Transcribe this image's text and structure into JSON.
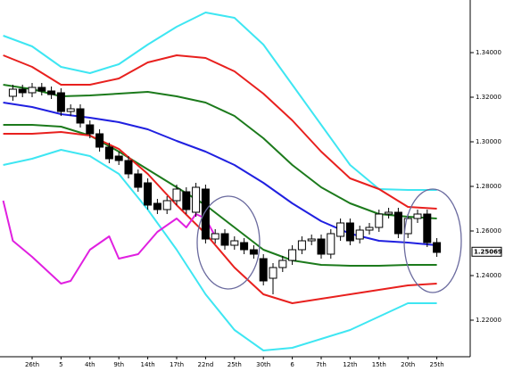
{
  "chart_data": {
    "type": "candlestick",
    "categories": [
      null,
      null,
      "26th",
      null,
      null,
      "5",
      null,
      null,
      "4th",
      null,
      null,
      "9th",
      null,
      null,
      "14th",
      null,
      null,
      "17th",
      null,
      null,
      "22nd",
      null,
      null,
      "25th",
      null,
      null,
      "30th",
      null,
      null,
      "6",
      null,
      null,
      "7th",
      null,
      null,
      "12th",
      null,
      null,
      "15th",
      null,
      null,
      "20th",
      null,
      null,
      "25th"
    ],
    "open": [
      1.3204,
      1.3236,
      1.322,
      1.3244,
      1.3228,
      1.322,
      1.3136,
      1.3148,
      1.3076,
      1.3036,
      1.2976,
      1.2936,
      1.2916,
      1.2856,
      1.2816,
      1.2724,
      1.2696,
      1.2736,
      1.2776,
      1.2684,
      1.2788,
      1.2564,
      1.2588,
      1.2536,
      1.2548,
      1.2516,
      1.2476,
      1.2388,
      1.2436,
      1.2468,
      1.2516,
      1.2556,
      1.2564,
      1.2496,
      1.2576,
      1.2636,
      1.2564,
      1.2604,
      1.2616,
      1.2676,
      1.2684,
      1.2588,
      1.2656,
      1.2676,
      1.2548
    ],
    "high": [
      1.3256,
      1.3256,
      1.3264,
      1.3264,
      1.3248,
      1.324,
      1.3168,
      1.3168,
      1.3096,
      1.3056,
      1.2996,
      1.2956,
      1.2936,
      1.2876,
      1.2836,
      1.2744,
      1.2756,
      1.2808,
      1.2796,
      1.2816,
      1.2808,
      1.2608,
      1.2608,
      1.2576,
      1.2568,
      1.2536,
      1.2496,
      1.2456,
      1.2488,
      1.2536,
      1.2576,
      1.2584,
      1.2584,
      1.2608,
      1.2656,
      1.2656,
      1.2624,
      1.2636,
      1.2696,
      1.2704,
      1.2704,
      1.2676,
      1.2696,
      1.2696,
      1.2568
    ],
    "low": [
      1.3184,
      1.32,
      1.32,
      1.3208,
      1.3192,
      1.3116,
      1.3116,
      1.3064,
      1.3016,
      1.2956,
      1.2904,
      1.2896,
      1.2836,
      1.2776,
      1.2696,
      1.2676,
      1.2676,
      1.2716,
      1.2676,
      1.2664,
      1.2544,
      1.2544,
      1.2516,
      1.2516,
      1.2496,
      1.2476,
      1.2356,
      1.2316,
      1.2416,
      1.2448,
      1.2496,
      1.2536,
      1.2476,
      1.2476,
      1.2556,
      1.2536,
      1.2544,
      1.2584,
      1.2596,
      1.2656,
      1.2568,
      1.2568,
      1.2636,
      1.2528,
      1.2484
    ],
    "close": [
      1.3236,
      1.322,
      1.3244,
      1.3228,
      1.3212,
      1.3136,
      1.3148,
      1.3084,
      1.3036,
      1.2976,
      1.2924,
      1.2916,
      1.2856,
      1.2796,
      1.2716,
      1.2696,
      1.2736,
      1.2788,
      1.2696,
      1.2796,
      1.2564,
      1.2588,
      1.2536,
      1.2556,
      1.2516,
      1.2496,
      1.2376,
      1.2436,
      1.2468,
      1.2516,
      1.2556,
      1.2564,
      1.2496,
      1.2588,
      1.2636,
      1.2556,
      1.2604,
      1.2616,
      1.2676,
      1.2684,
      1.2588,
      1.2656,
      1.2676,
      1.2548,
      1.2504
    ],
    "bands": [
      {
        "color": "#3ee6f2",
        "x": [
          -1,
          2,
          5,
          8,
          11,
          14,
          17,
          20,
          23,
          26,
          29,
          32,
          35,
          38,
          41,
          44
        ],
        "values": [
          1.3476,
          1.3428,
          1.3336,
          1.3308,
          1.3348,
          1.3436,
          1.3516,
          1.358,
          1.3556,
          1.3436,
          1.3256,
          1.3076,
          1.2896,
          1.2788,
          1.2784,
          1.2784
        ]
      },
      {
        "color": "#e8201e",
        "x": [
          -1,
          2,
          5,
          8,
          11,
          14,
          17,
          20,
          23,
          26,
          29,
          32,
          35,
          38,
          41,
          44
        ],
        "values": [
          1.3388,
          1.3336,
          1.3256,
          1.3256,
          1.3284,
          1.3356,
          1.3388,
          1.3376,
          1.3316,
          1.3216,
          1.3096,
          1.2956,
          1.2836,
          1.2788,
          1.2708,
          1.27
        ]
      },
      {
        "color": "#1c7a1c",
        "x": [
          -1,
          2,
          5,
          8,
          11,
          14,
          17,
          20,
          23,
          26,
          29,
          32,
          35,
          38,
          41,
          44
        ],
        "values": [
          1.3256,
          1.3236,
          1.3204,
          1.3208,
          1.3216,
          1.3224,
          1.3204,
          1.3176,
          1.3116,
          1.3016,
          1.2896,
          1.2796,
          1.2724,
          1.2676,
          1.2664,
          1.2656
        ]
      },
      {
        "color": "#2020e0",
        "x": [
          -1,
          2,
          5,
          8,
          11,
          14,
          17,
          20,
          23,
          26,
          29,
          32,
          35,
          38,
          41,
          44
        ],
        "values": [
          1.3176,
          1.3156,
          1.3124,
          1.3108,
          1.3088,
          1.3056,
          1.3004,
          1.2956,
          1.2896,
          1.2816,
          1.2724,
          1.2644,
          1.2588,
          1.2556,
          1.2548,
          1.2536
        ]
      },
      {
        "color": "#1c7a1c",
        "x": [
          -1,
          2,
          5,
          8,
          11,
          14,
          17,
          20,
          23,
          26,
          29,
          32,
          35,
          38,
          41,
          44
        ],
        "values": [
          1.3076,
          1.3076,
          1.3068,
          1.3028,
          1.2956,
          1.2876,
          1.2796,
          1.2716,
          1.2616,
          1.2516,
          1.2468,
          1.2448,
          1.2444,
          1.2444,
          1.2448,
          1.2448
        ]
      },
      {
        "color": "#e8201e",
        "x": [
          -1,
          2,
          5,
          8,
          11,
          14,
          17,
          20,
          23,
          26,
          29,
          32,
          35,
          38,
          41,
          44
        ],
        "values": [
          1.3036,
          1.3036,
          1.3044,
          1.3028,
          1.2968,
          1.2856,
          1.2716,
          1.2588,
          1.2436,
          1.2316,
          1.2276,
          1.2296,
          1.2316,
          1.2336,
          1.2356,
          1.2364
        ]
      },
      {
        "color": "#3ee6f2",
        "x": [
          -1,
          2,
          5,
          8,
          11,
          14,
          17,
          20,
          23,
          26,
          29,
          32,
          35,
          38,
          41,
          44
        ],
        "values": [
          1.2896,
          1.2924,
          1.2964,
          1.2936,
          1.2856,
          1.2696,
          1.2516,
          1.2316,
          1.2156,
          1.2064,
          1.2076,
          1.2116,
          1.2156,
          1.2216,
          1.2276,
          1.2276
        ]
      },
      {
        "color": "#e020e0",
        "x": [
          -1,
          0,
          2,
          5,
          6,
          8,
          10,
          11,
          13,
          15,
          17,
          18,
          19,
          20,
          21
        ],
        "values": [
          1.2736,
          1.2556,
          1.2484,
          1.2364,
          1.2376,
          1.2516,
          1.2576,
          1.2476,
          1.2496,
          1.2596,
          1.2656,
          1.2616,
          1.2676,
          1.2656,
          1.2576
        ]
      }
    ],
    "ylim": [
      1.2036,
      1.3636
    ],
    "yticks": [
      {
        "value": 1.22,
        "label": "1.22000"
      },
      {
        "value": 1.24,
        "label": "1.24000"
      },
      {
        "value": 1.26,
        "label": "1.26000"
      },
      {
        "value": 1.28,
        "label": "1.28000"
      },
      {
        "value": 1.3,
        "label": "1.30000"
      },
      {
        "value": 1.32,
        "label": "1.32000"
      },
      {
        "value": 1.34,
        "label": "1.34000"
      }
    ],
    "last_price": 1.25069
  }
}
